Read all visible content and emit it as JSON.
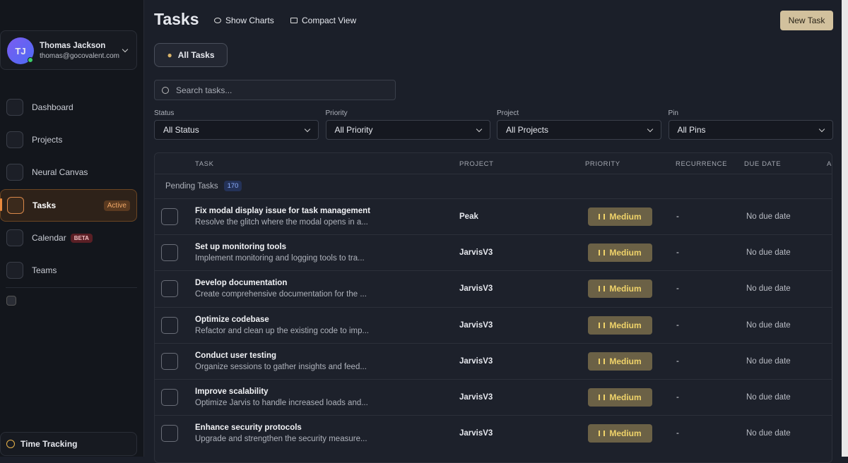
{
  "sidebar": {
    "user": {
      "initials": "TJ",
      "name": "Thomas Jackson",
      "email": "thomas@gocovalent.com"
    },
    "nav": [
      {
        "label": "Dashboard"
      },
      {
        "label": "Projects"
      },
      {
        "label": "Neural Canvas"
      },
      {
        "label": "Tasks",
        "badge": "Active"
      },
      {
        "label": "Calendar",
        "badge": "BETA"
      },
      {
        "label": "Teams"
      }
    ],
    "footer": {
      "label": "Time Tracking"
    }
  },
  "header": {
    "title": "Tasks",
    "actions": [
      "Show Charts",
      "Compact View"
    ],
    "new_task": "New Task"
  },
  "tabs": [
    "All Tasks"
  ],
  "search": {
    "placeholder": "Search tasks..."
  },
  "filters": [
    {
      "label": "Status",
      "value": "All Status"
    },
    {
      "label": "Priority",
      "value": "All Priority"
    },
    {
      "label": "Project",
      "value": "All Projects"
    },
    {
      "label": "Pin",
      "value": "All Pins"
    }
  ],
  "table": {
    "columns": [
      "TASK",
      "PROJECT",
      "PRIORITY",
      "RECURRENCE",
      "DUE DATE",
      "A"
    ],
    "group": {
      "label": "Pending Tasks",
      "count": 170
    },
    "rows": [
      {
        "title": "Fix modal display issue for task management",
        "description": "Resolve the glitch where the modal opens in a...",
        "project": "Peak",
        "priority": "Medium",
        "recurrence": "-",
        "due": "No due date"
      },
      {
        "title": "Set up monitoring tools",
        "description": "Implement monitoring and logging tools to tra...",
        "project": "JarvisV3",
        "priority": "Medium",
        "recurrence": "-",
        "due": "No due date"
      },
      {
        "title": "Develop documentation",
        "description": "Create comprehensive documentation for the ...",
        "project": "JarvisV3",
        "priority": "Medium",
        "recurrence": "-",
        "due": "No due date"
      },
      {
        "title": "Optimize codebase",
        "description": "Refactor and clean up the existing code to imp...",
        "project": "JarvisV3",
        "priority": "Medium",
        "recurrence": "-",
        "due": "No due date"
      },
      {
        "title": "Conduct user testing",
        "description": "Organize sessions to gather insights and feed...",
        "project": "JarvisV3",
        "priority": "Medium",
        "recurrence": "-",
        "due": "No due date"
      },
      {
        "title": "Improve scalability",
        "description": "Optimize Jarvis to handle increased loads and...",
        "project": "JarvisV3",
        "priority": "Medium",
        "recurrence": "-",
        "due": "No due date"
      },
      {
        "title": "Enhance security protocols",
        "description": "Upgrade and strengthen the security measure...",
        "project": "JarvisV3",
        "priority": "Medium",
        "recurrence": "-",
        "due": "No due date"
      }
    ]
  }
}
